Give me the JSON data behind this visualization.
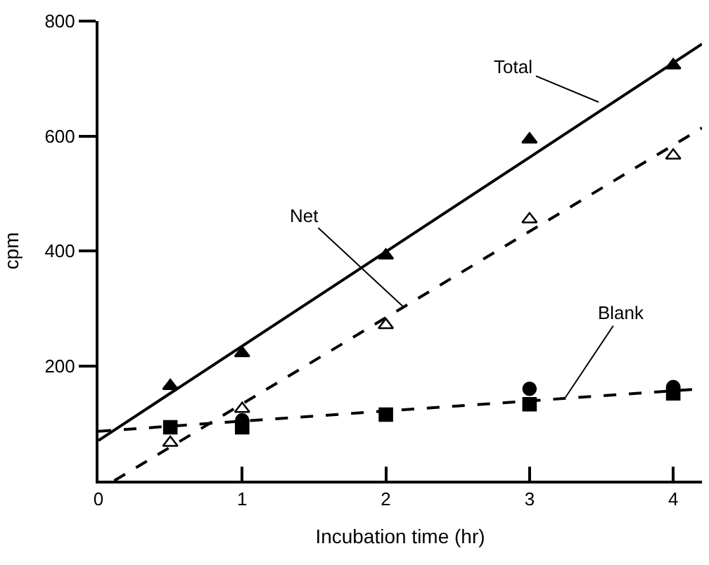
{
  "chart_data": {
    "type": "scatter",
    "xlabel": "Incubation time (hr)",
    "ylabel": "cpm",
    "xlim": [
      0,
      4.2
    ],
    "xticks": [
      0,
      1,
      2,
      3,
      4
    ],
    "ylim": [
      0,
      800
    ],
    "yticks": [
      200,
      400,
      600,
      800
    ],
    "series": [
      {
        "type": "line",
        "x": [
          0,
          4.2
        ],
        "values": [
          70,
          760
        ],
        "color": "#000000",
        "line_style": "solid"
      },
      {
        "type": "line",
        "x": [
          0.11,
          4.2
        ],
        "values": [
          0,
          614
        ],
        "color": "#000000",
        "line_style": "dashed"
      },
      {
        "type": "line",
        "x": [
          0,
          4.2
        ],
        "values": [
          86,
          160
        ],
        "color": "#000000",
        "line_style": "dashed"
      },
      {
        "x": [
          0.5,
          1,
          2,
          3,
          4
        ],
        "values": [
          165,
          222,
          392,
          594,
          723
        ],
        "color": "#000000",
        "marker": "triangle"
      },
      {
        "x": [
          0.5,
          1,
          2,
          3,
          4
        ],
        "values": [
          66,
          125,
          271,
          455,
          566
        ],
        "color": "#ffffff",
        "marker": "triangle"
      },
      {
        "x": [
          0.5,
          1,
          2,
          3,
          4
        ],
        "values": [
          93,
          93,
          115,
          133,
          152
        ],
        "color": "#000000",
        "marker": "square"
      },
      {
        "x": [
          1,
          3,
          4
        ],
        "values": [
          105,
          160,
          163
        ],
        "color": "#000000",
        "marker": "circle"
      }
    ],
    "annotations": [
      {
        "text": "Total",
        "x": 3.48,
        "y": 659
      },
      {
        "text": "Net",
        "x": 2.12,
        "y": 303
      },
      {
        "text": "Blank",
        "x": 3.25,
        "y": 145
      }
    ]
  }
}
